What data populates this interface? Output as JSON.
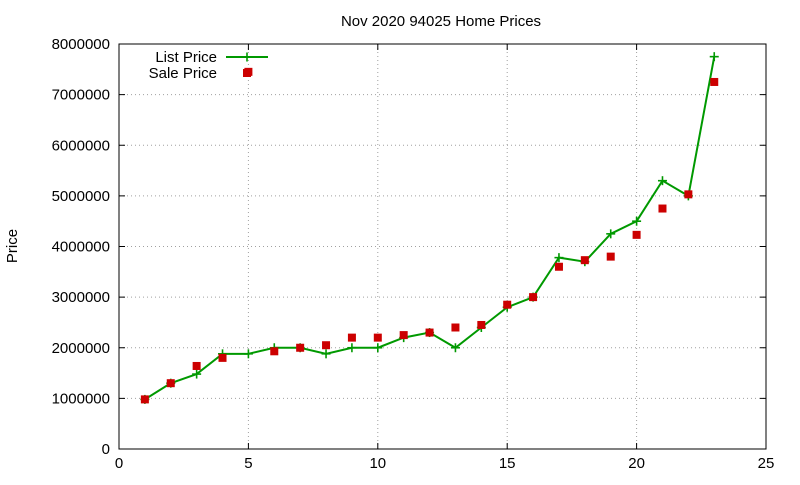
{
  "chart_data": {
    "type": "line",
    "title": "Nov 2020 94025 Home Prices",
    "xlabel": "",
    "ylabel": "Price",
    "xlim": [
      0,
      25
    ],
    "ylim": [
      0,
      8000000
    ],
    "xticks": [
      0,
      5,
      10,
      15,
      20,
      25
    ],
    "yticks": [
      0,
      1000000,
      2000000,
      3000000,
      4000000,
      5000000,
      6000000,
      7000000,
      8000000
    ],
    "grid": true,
    "legend_position": "top-left",
    "series": [
      {
        "name": "List Price",
        "style": "linespoints",
        "marker": "plus",
        "color": "#009900",
        "x": [
          1,
          2,
          3,
          4,
          5,
          6,
          7,
          8,
          9,
          10,
          11,
          12,
          13,
          14,
          15,
          16,
          17,
          18,
          19,
          20,
          21,
          22,
          23
        ],
        "y": [
          980000,
          1300000,
          1480000,
          1880000,
          1880000,
          2000000,
          2000000,
          1880000,
          2000000,
          2000000,
          2200000,
          2300000,
          2000000,
          2400000,
          2800000,
          3000000,
          3780000,
          3700000,
          4250000,
          4500000,
          5300000,
          5000000,
          7750000
        ]
      },
      {
        "name": "Sale Price",
        "style": "points",
        "marker": "square",
        "color": "#cc0000",
        "x": [
          1,
          2,
          3,
          4,
          5,
          6,
          7,
          8,
          9,
          10,
          11,
          12,
          13,
          14,
          15,
          16,
          17,
          18,
          19,
          20,
          21,
          22,
          23
        ],
        "y": [
          980000,
          1300000,
          1640000,
          1800000,
          7450000,
          1930000,
          2000000,
          2050000,
          2200000,
          2200000,
          2250000,
          2300000,
          2400000,
          2450000,
          2850000,
          3000000,
          3600000,
          3730000,
          3800000,
          4230000,
          4750000,
          5030000,
          7250000
        ]
      }
    ]
  }
}
